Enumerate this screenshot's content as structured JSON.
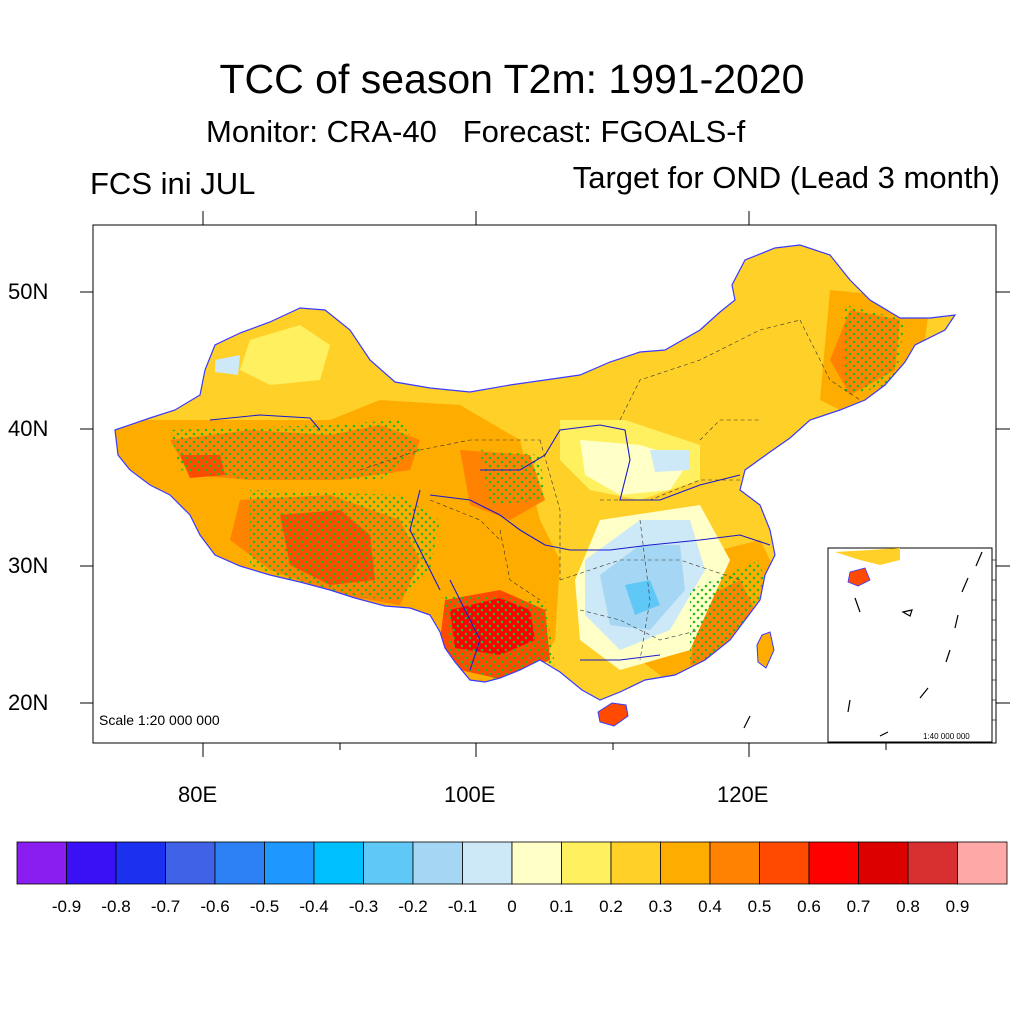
{
  "header": {
    "title": "TCC of season T2m: 1991-2020",
    "subtitle": "Monitor: CRA-40   Forecast: FGOALS-f",
    "left_label": "FCS ini JUL",
    "right_label": "Target for OND (Lead 3 month)"
  },
  "axes": {
    "lat_labels": [
      "50N",
      "40N",
      "30N",
      "20N"
    ],
    "lon_labels": [
      "80E",
      "100E",
      "120E"
    ]
  },
  "map": {
    "scale_text": "Scale 1:20 000 000",
    "inset_scale_text": "1:40 000 000",
    "significance_marker_color": "#22bb22",
    "ocean_color": "#ffffff"
  },
  "colorbar": {
    "colors": [
      "#8a1ef0",
      "#3a10f5",
      "#1c30f0",
      "#4062e6",
      "#2e80f5",
      "#1e98ff",
      "#00bfff",
      "#60c8f6",
      "#a5d7f4",
      "#cde8f6",
      "#ffffc8",
      "#fff060",
      "#ffd028",
      "#ffac00",
      "#ff8200",
      "#ff4a00",
      "#ff0000",
      "#dc0000",
      "#d83030",
      "#ffa8a8"
    ],
    "labels": [
      "-0.9",
      "-0.8",
      "-0.7",
      "-0.6",
      "-0.5",
      "-0.4",
      "-0.3",
      "-0.2",
      "-0.1",
      "0",
      "0.1",
      "0.2",
      "0.3",
      "0.4",
      "0.5",
      "0.6",
      "0.7",
      "0.8",
      "0.9"
    ]
  }
}
